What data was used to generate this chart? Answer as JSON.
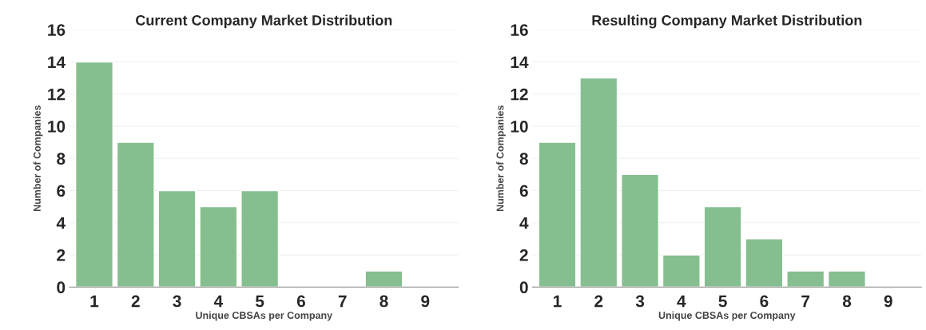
{
  "chart_data": [
    {
      "type": "bar",
      "title": "Current Company Market Distribution",
      "xlabel": "Unique CBSAs per Company",
      "ylabel": "Number of Companies",
      "categories": [
        "1",
        "2",
        "3",
        "4",
        "5",
        "6",
        "7",
        "8",
        "9"
      ],
      "values": [
        14,
        9,
        6,
        5,
        6,
        0,
        0,
        1,
        0
      ],
      "color": "#86bf8f",
      "ylim": [
        0,
        16
      ],
      "yticks": [
        0,
        2,
        4,
        6,
        8,
        10,
        12,
        14,
        16
      ],
      "grid": "y",
      "legend": false
    },
    {
      "type": "bar",
      "title": "Resulting Company Market Distribution",
      "xlabel": "Unique CBSAs per Company",
      "ylabel": "Number of Companies",
      "categories": [
        "1",
        "2",
        "3",
        "4",
        "5",
        "6",
        "7",
        "8",
        "9"
      ],
      "values": [
        9,
        13,
        7,
        2,
        5,
        3,
        1,
        1,
        0
      ],
      "color": "#86bf8f",
      "ylim": [
        0,
        16
      ],
      "yticks": [
        0,
        2,
        4,
        6,
        8,
        10,
        12,
        14,
        16
      ],
      "grid": "y",
      "legend": false
    }
  ]
}
